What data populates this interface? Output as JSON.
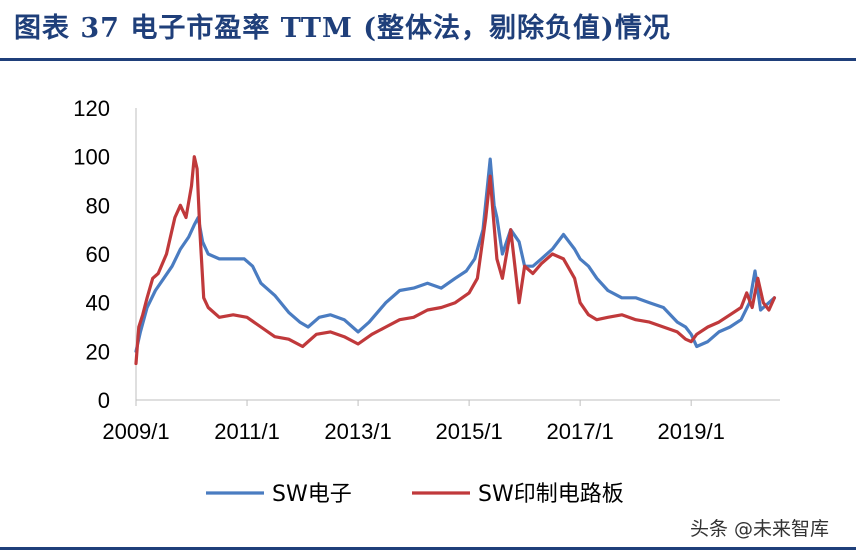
{
  "header": {
    "title": "图表 37   电子市盈率 TTM (整体法，剔除负值)情况"
  },
  "watermark": "头条 @未来智库",
  "colors": {
    "title": "#1f3f7a",
    "rule": "#1f3f7a",
    "series_sw_electronics": "#4a7cc1",
    "series_sw_pcb": "#c0393b"
  },
  "chart_data": {
    "type": "line",
    "title": "",
    "xlabel": "",
    "ylabel": "",
    "xlim": [
      2009.0,
      2020.6
    ],
    "ylim": [
      0,
      120
    ],
    "yticks": [
      0,
      20,
      40,
      60,
      80,
      100,
      120
    ],
    "xticks": [
      {
        "value": 2009.0,
        "label": "2009/1"
      },
      {
        "value": 2011.0,
        "label": "2011/1"
      },
      {
        "value": 2013.0,
        "label": "2013/1"
      },
      {
        "value": 2015.0,
        "label": "2015/1"
      },
      {
        "value": 2017.0,
        "label": "2017/1"
      },
      {
        "value": 2019.0,
        "label": "2019/1"
      }
    ],
    "legend": "bottom",
    "series": [
      {
        "name": "SW电子",
        "color": "#4a7cc1",
        "x": [
          2009.0,
          2009.08,
          2009.2,
          2009.35,
          2009.5,
          2009.65,
          2009.8,
          2009.95,
          2010.05,
          2010.12,
          2010.2,
          2010.3,
          2010.5,
          2010.75,
          2010.95,
          2011.1,
          2011.25,
          2011.5,
          2011.75,
          2011.95,
          2012.1,
          2012.3,
          2012.5,
          2012.75,
          2012.9,
          2013.0,
          2013.2,
          2013.5,
          2013.75,
          2014.0,
          2014.25,
          2014.5,
          2014.75,
          2014.95,
          2015.1,
          2015.25,
          2015.38,
          2015.45,
          2015.5,
          2015.6,
          2015.75,
          2015.9,
          2016.0,
          2016.15,
          2016.3,
          2016.5,
          2016.7,
          2016.9,
          2017.0,
          2017.15,
          2017.3,
          2017.5,
          2017.75,
          2018.0,
          2018.25,
          2018.5,
          2018.75,
          2018.9,
          2019.0,
          2019.1,
          2019.3,
          2019.5,
          2019.7,
          2019.9,
          2020.05,
          2020.15,
          2020.25,
          2020.4,
          2020.5
        ],
        "values": [
          20,
          28,
          38,
          45,
          50,
          55,
          62,
          67,
          72,
          75,
          65,
          60,
          58,
          58,
          58,
          55,
          48,
          43,
          36,
          32,
          30,
          34,
          35,
          33,
          30,
          28,
          32,
          40,
          45,
          46,
          48,
          46,
          50,
          53,
          58,
          70,
          99,
          80,
          75,
          60,
          70,
          65,
          55,
          55,
          58,
          62,
          68,
          62,
          58,
          55,
          50,
          45,
          42,
          42,
          40,
          38,
          32,
          30,
          27,
          22,
          24,
          28,
          30,
          33,
          40,
          53,
          37,
          40,
          42
        ]
      },
      {
        "name": "SW印制电路板",
        "color": "#c0393b",
        "x": [
          2009.0,
          2009.05,
          2009.12,
          2009.2,
          2009.3,
          2009.4,
          2009.55,
          2009.7,
          2009.8,
          2009.9,
          2010.0,
          2010.05,
          2010.1,
          2010.15,
          2010.22,
          2010.3,
          2010.5,
          2010.75,
          2011.0,
          2011.25,
          2011.5,
          2011.75,
          2012.0,
          2012.25,
          2012.5,
          2012.75,
          2013.0,
          2013.25,
          2013.5,
          2013.75,
          2014.0,
          2014.25,
          2014.5,
          2014.75,
          2015.0,
          2015.15,
          2015.3,
          2015.38,
          2015.42,
          2015.5,
          2015.6,
          2015.75,
          2015.9,
          2016.0,
          2016.15,
          2016.3,
          2016.5,
          2016.7,
          2016.9,
          2017.0,
          2017.15,
          2017.3,
          2017.5,
          2017.75,
          2018.0,
          2018.25,
          2018.5,
          2018.75,
          2018.9,
          2019.0,
          2019.1,
          2019.3,
          2019.5,
          2019.7,
          2019.9,
          2020.0,
          2020.1,
          2020.2,
          2020.3,
          2020.4,
          2020.5
        ],
        "values": [
          15,
          30,
          35,
          42,
          50,
          52,
          60,
          75,
          80,
          75,
          88,
          100,
          95,
          70,
          42,
          38,
          34,
          35,
          34,
          30,
          26,
          25,
          22,
          27,
          28,
          26,
          23,
          27,
          30,
          33,
          34,
          37,
          38,
          40,
          44,
          50,
          75,
          92,
          80,
          58,
          50,
          70,
          40,
          55,
          52,
          56,
          60,
          58,
          50,
          40,
          35,
          33,
          34,
          35,
          33,
          32,
          30,
          28,
          25,
          24,
          27,
          30,
          32,
          35,
          38,
          44,
          38,
          50,
          40,
          37,
          42
        ]
      }
    ]
  }
}
